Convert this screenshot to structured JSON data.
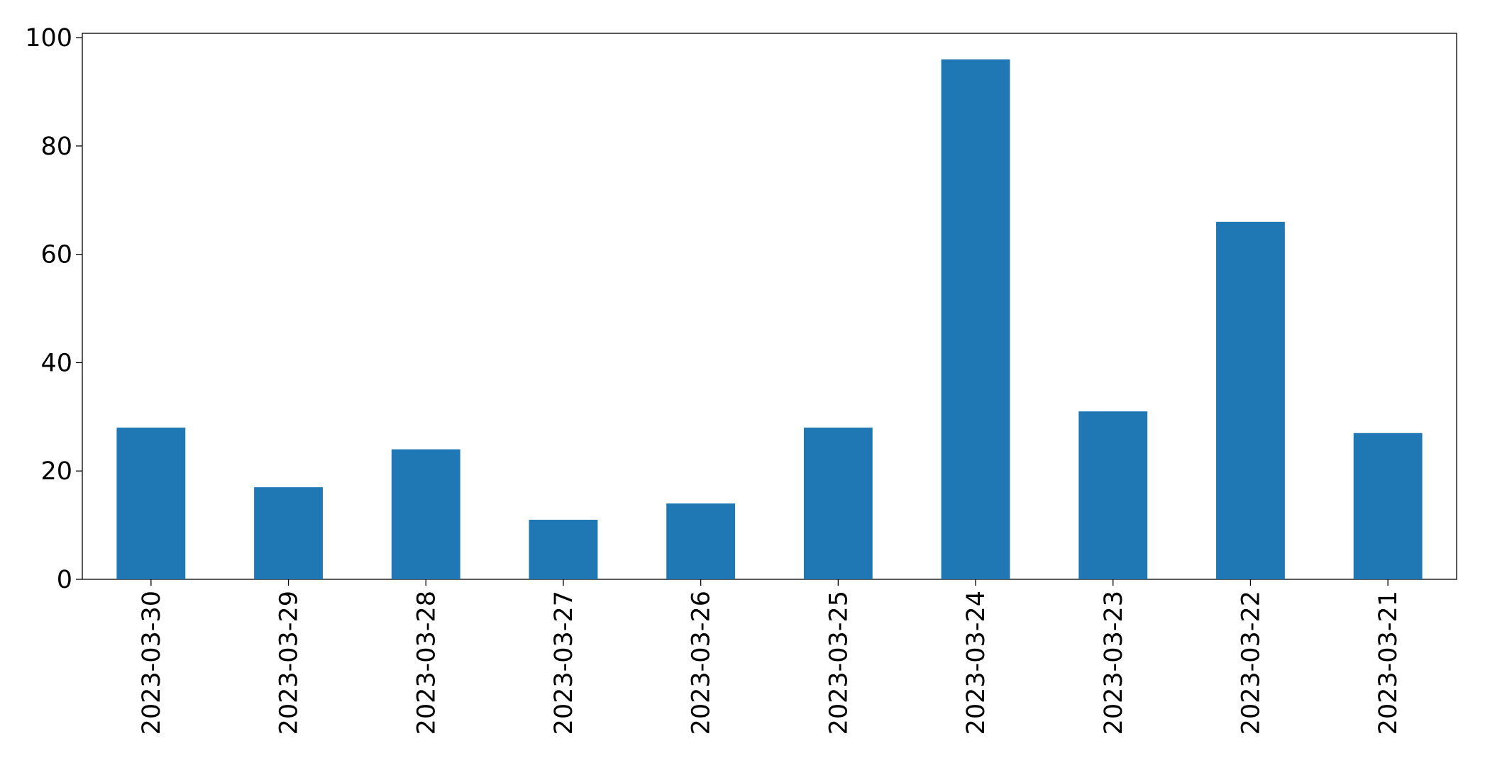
{
  "chart_data": {
    "type": "bar",
    "categories": [
      "2023-03-30",
      "2023-03-29",
      "2023-03-28",
      "2023-03-27",
      "2023-03-26",
      "2023-03-25",
      "2023-03-24",
      "2023-03-23",
      "2023-03-22",
      "2023-03-21"
    ],
    "values": [
      28,
      17,
      24,
      11,
      14,
      28,
      96,
      31,
      66,
      27
    ],
    "color": "#1f77b4",
    "ylim": [
      0,
      100.8
    ],
    "yticks": [
      0,
      20,
      40,
      60,
      80,
      100
    ],
    "grid": false
  }
}
